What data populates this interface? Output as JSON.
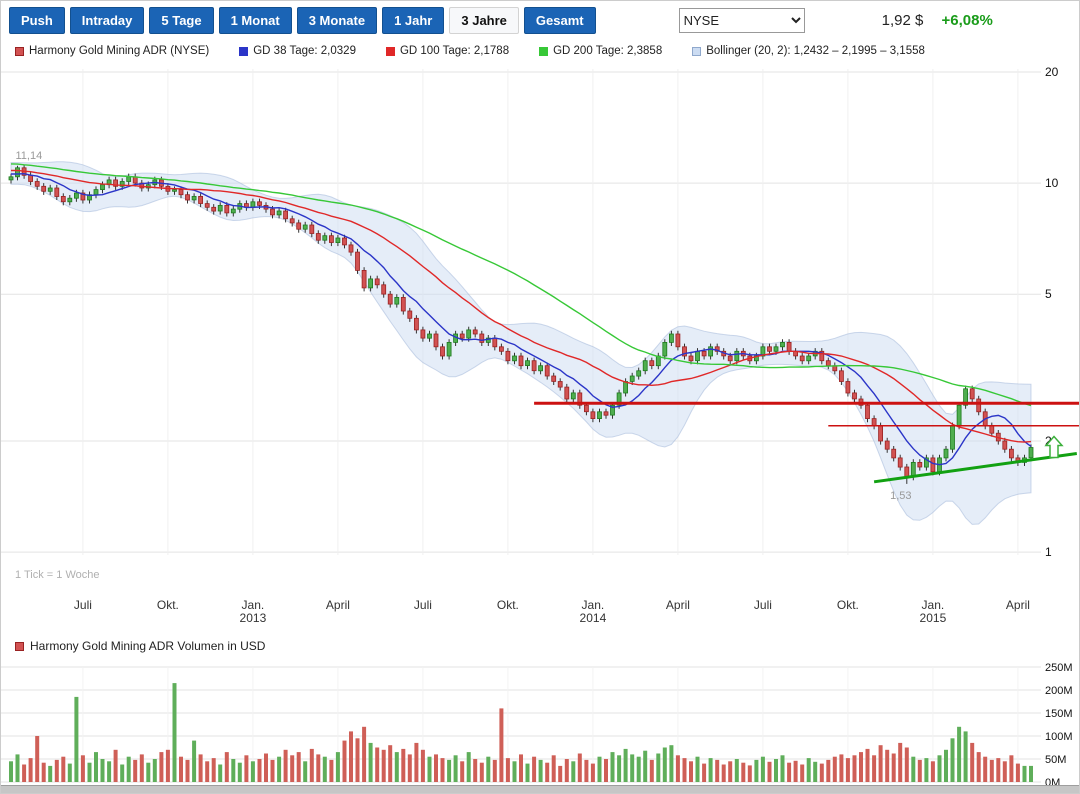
{
  "toolbar": {
    "buttons": [
      {
        "label": "Push"
      },
      {
        "label": "Intraday"
      },
      {
        "label": "5 Tage"
      },
      {
        "label": "1 Monat"
      },
      {
        "label": "3 Monate"
      },
      {
        "label": "1 Jahr"
      },
      {
        "label": "3 Jahre",
        "active": true
      },
      {
        "label": "Gesamt"
      }
    ],
    "exchange_select": {
      "value": "NYSE",
      "options": [
        "NYSE"
      ]
    },
    "price": "1,92 $",
    "change": "+6,08%",
    "change_color": "#1a9c1a"
  },
  "legend": {
    "items": [
      {
        "label": "Harmony Gold Mining ADR (NYSE)",
        "color": "#d25252",
        "border": "#992222"
      },
      {
        "label": "GD 38 Tage: 2,0329",
        "color": "#2b35c8",
        "border": "#2b35c8"
      },
      {
        "label": "GD 100 Tage: 2,1788",
        "color": "#e02828",
        "border": "#e02828"
      },
      {
        "label": "GD 200 Tage: 2,3858",
        "color": "#37c837",
        "border": "#37c837"
      },
      {
        "label": "Bollinger (20, 2): 1,2432 – 2,1995 – 3,1558",
        "color": "#ccdcf2",
        "border": "#8fa8cc"
      }
    ]
  },
  "chart_data": [
    {
      "type": "candlestick",
      "title": "Harmony Gold Mining ADR (NYSE)",
      "tick_note": "1 Tick = 1 Woche",
      "y_axis": {
        "scale": "log",
        "side": "right",
        "ticks": [
          20,
          10,
          5,
          2,
          1
        ],
        "range": [
          1,
          20
        ]
      },
      "x_ticks": [
        {
          "label": "Juli",
          "week": 11
        },
        {
          "label": "Okt.",
          "week": 24
        },
        {
          "label": "Jan.",
          "week": 37,
          "year": "2013"
        },
        {
          "label": "April",
          "week": 50
        },
        {
          "label": "Juli",
          "week": 63
        },
        {
          "label": "Okt.",
          "week": 76
        },
        {
          "label": "Jan.",
          "week": 89,
          "year": "2014"
        },
        {
          "label": "April",
          "week": 102
        },
        {
          "label": "Juli",
          "week": 115
        },
        {
          "label": "Okt.",
          "week": 128
        },
        {
          "label": "Jan.",
          "week": 141,
          "year": "2015"
        },
        {
          "label": "April",
          "week": 154
        }
      ],
      "first_open": 10.2,
      "closes": [
        10.4,
        11.0,
        10.5,
        10.1,
        9.8,
        9.5,
        9.7,
        9.2,
        8.9,
        9.1,
        9.4,
        9.0,
        9.3,
        9.6,
        9.9,
        10.2,
        9.8,
        10.1,
        10.4,
        10.0,
        9.7,
        9.9,
        10.2,
        9.8,
        9.5,
        9.6,
        9.3,
        9.0,
        9.2,
        8.8,
        8.6,
        8.4,
        8.7,
        8.3,
        8.5,
        8.8,
        8.6,
        8.9,
        8.7,
        8.5,
        8.2,
        8.4,
        8.0,
        7.8,
        7.5,
        7.7,
        7.3,
        7.0,
        7.2,
        6.9,
        7.1,
        6.8,
        6.5,
        5.8,
        5.2,
        5.5,
        5.3,
        5.0,
        4.7,
        4.9,
        4.5,
        4.3,
        4.0,
        3.8,
        3.9,
        3.6,
        3.4,
        3.7,
        3.9,
        3.8,
        4.0,
        3.9,
        3.7,
        3.8,
        3.6,
        3.5,
        3.3,
        3.4,
        3.2,
        3.3,
        3.1,
        3.2,
        3.0,
        2.9,
        2.8,
        2.6,
        2.7,
        2.5,
        2.4,
        2.3,
        2.4,
        2.35,
        2.5,
        2.7,
        2.9,
        3.0,
        3.1,
        3.3,
        3.2,
        3.4,
        3.7,
        3.9,
        3.6,
        3.4,
        3.3,
        3.5,
        3.4,
        3.6,
        3.5,
        3.4,
        3.3,
        3.5,
        3.4,
        3.3,
        3.4,
        3.6,
        3.5,
        3.6,
        3.7,
        3.5,
        3.4,
        3.3,
        3.4,
        3.5,
        3.3,
        3.2,
        3.1,
        2.9,
        2.7,
        2.6,
        2.5,
        2.3,
        2.2,
        2.0,
        1.9,
        1.8,
        1.7,
        1.6,
        1.75,
        1.7,
        1.8,
        1.65,
        1.8,
        1.9,
        2.2,
        2.5,
        2.77,
        2.6,
        2.4,
        2.2,
        2.1,
        2.0,
        1.9,
        1.8,
        1.75,
        1.8,
        1.92
      ],
      "annotations": [
        {
          "type": "high",
          "week": 1,
          "value": 11.14,
          "label": "11,14"
        },
        {
          "type": "low",
          "week": 137,
          "value": 1.53,
          "label": "1,53"
        }
      ],
      "up_color": "#4fae4f",
      "up_border": "#1d7a1d",
      "down_color": "#d25252",
      "down_border": "#992222",
      "wick_color": "#333333",
      "ma_lines": [
        {
          "name": "GD 38 Tage",
          "window_weeks": 8,
          "color": "#2b35c8",
          "current": 2.0329
        },
        {
          "name": "GD 100 Tage",
          "window_weeks": 21,
          "color": "#e02828",
          "current": 2.1788
        },
        {
          "name": "GD 200 Tage",
          "window_weeks": 43,
          "color": "#37c837",
          "current": 2.3858
        }
      ],
      "bollinger": {
        "name": "Bollinger (20, 2)",
        "window_weeks": 13,
        "k": 2.2,
        "fill": "#ccdcf2",
        "current_lower": 1.2432,
        "current_middle": 2.1995,
        "current_upper": 3.1558
      },
      "lines": [
        {
          "name": "resistance-line",
          "type": "horizontal",
          "value": 2.53,
          "from_week": 80,
          "color": "#cc1111",
          "width": 3
        },
        {
          "name": "minor-resistance-line",
          "type": "horizontal",
          "value": 2.2,
          "from_week": 125,
          "color": "#cc1111",
          "width": 1.5
        },
        {
          "name": "support-trendline",
          "type": "trend",
          "from": {
            "week": 132,
            "value": 1.55
          },
          "to": {
            "week": 163,
            "value": 1.85
          },
          "color": "#12a112",
          "width": 3
        }
      ],
      "trend_arrow": {
        "direction": "up",
        "value": 1.92,
        "color": "#3cb03c"
      }
    },
    {
      "type": "bar",
      "title": "Harmony Gold Mining ADR Volumen in USD",
      "unit": "millions USD",
      "y_ticks": [
        {
          "label": "250M",
          "value": 250
        },
        {
          "label": "200M",
          "value": 200
        },
        {
          "label": "150M",
          "value": 150
        },
        {
          "label": "100M",
          "value": 100
        },
        {
          "label": "50M",
          "value": 50
        },
        {
          "label": "0M",
          "value": 0
        }
      ],
      "values": [
        45,
        60,
        38,
        52,
        100,
        42,
        35,
        48,
        55,
        40,
        185,
        58,
        42,
        65,
        50,
        45,
        70,
        38,
        55,
        48,
        60,
        42,
        50,
        65,
        70,
        215,
        55,
        48,
        90,
        60,
        45,
        52,
        38,
        65,
        50,
        42,
        58,
        45,
        50,
        62,
        48,
        55,
        70,
        58,
        65,
        45,
        72,
        60,
        55,
        48,
        65,
        90,
        110,
        95,
        120,
        85,
        75,
        70,
        80,
        65,
        72,
        60,
        85,
        70,
        55,
        60,
        52,
        48,
        58,
        45,
        65,
        50,
        42,
        55,
        48,
        160,
        52,
        45,
        60,
        40,
        55,
        48,
        42,
        58,
        35,
        50,
        45,
        62,
        48,
        40,
        55,
        50,
        65,
        58,
        72,
        60,
        55,
        68,
        48,
        62,
        75,
        80,
        58,
        52,
        45,
        55,
        40,
        52,
        48,
        38,
        45,
        50,
        42,
        36,
        48,
        55,
        44,
        50,
        58,
        42,
        46,
        38,
        52,
        44,
        40,
        48,
        55,
        60,
        52,
        58,
        65,
        72,
        58,
        80,
        70,
        62,
        85,
        75,
        55,
        48,
        52,
        45,
        58,
        70,
        95,
        120,
        110,
        85,
        65,
        55,
        48,
        52,
        45,
        58,
        40,
        35,
        35
      ],
      "legend_color": "#d25252",
      "legend_border": "#992222",
      "up_color": "#5fae5a",
      "down_color": "#cf5f57"
    }
  ]
}
